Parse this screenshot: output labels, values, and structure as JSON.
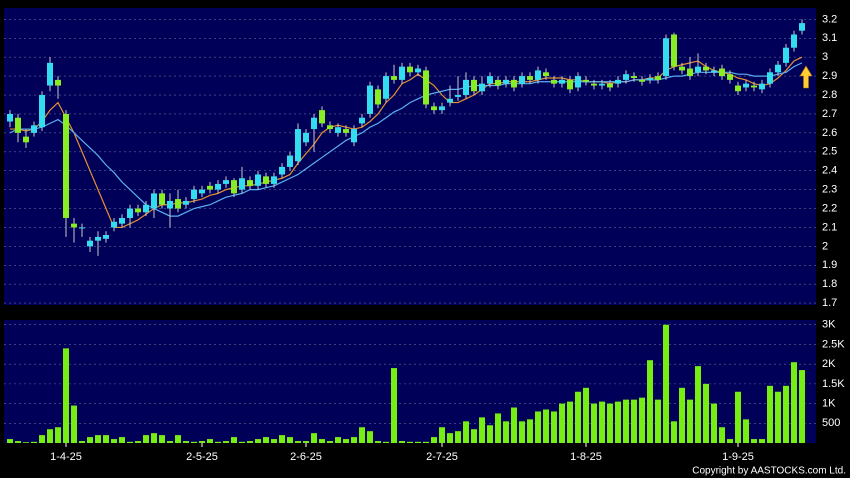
{
  "chart_data": [
    {
      "type": "candlestick",
      "up_color": "#33ddee",
      "down_color": "#88ee22",
      "open": [
        2.66,
        2.68,
        2.58,
        2.6,
        2.63,
        2.85,
        2.88,
        2.7,
        2.12,
        2.1,
        2.0,
        2.03,
        2.04,
        2.1,
        2.12,
        2.15,
        2.2,
        2.18,
        2.2,
        2.28,
        2.2,
        2.25,
        2.22,
        2.25,
        2.28,
        2.32,
        2.3,
        2.33,
        2.35,
        2.3,
        2.35,
        2.32,
        2.37,
        2.33,
        2.38,
        2.42,
        2.45,
        2.55,
        2.62,
        2.72,
        2.64,
        2.6,
        2.62,
        2.55,
        2.65,
        2.7,
        2.83,
        2.78,
        2.9,
        2.88,
        2.95,
        2.92,
        2.93,
        2.74,
        2.72,
        2.76,
        2.79,
        2.8,
        2.88,
        2.82,
        2.86,
        2.88,
        2.86,
        2.88,
        2.86,
        2.9,
        2.88,
        2.92,
        2.88,
        2.86,
        2.88,
        2.84,
        2.88,
        2.86,
        2.85,
        2.86,
        2.86,
        2.88,
        2.9,
        2.88,
        2.88,
        2.9,
        2.9,
        3.12,
        2.95,
        2.94,
        2.92,
        2.95,
        2.92,
        2.94,
        2.91,
        2.85,
        2.84,
        2.85,
        2.83,
        2.86,
        2.92,
        2.97,
        3.05,
        3.14
      ],
      "high": [
        2.72,
        2.7,
        2.62,
        2.66,
        2.82,
        3.0,
        2.9,
        2.72,
        2.15,
        2.12,
        2.05,
        2.08,
        2.08,
        2.15,
        2.17,
        2.22,
        2.22,
        2.24,
        2.3,
        2.3,
        2.28,
        2.3,
        2.26,
        2.32,
        2.32,
        2.34,
        2.35,
        2.37,
        2.36,
        2.42,
        2.37,
        2.4,
        2.39,
        2.39,
        2.44,
        2.5,
        2.65,
        2.62,
        2.7,
        2.74,
        2.66,
        2.65,
        2.64,
        2.64,
        2.7,
        2.87,
        2.85,
        2.92,
        2.96,
        2.97,
        2.97,
        2.96,
        2.95,
        2.76,
        2.76,
        2.85,
        2.9,
        2.92,
        2.9,
        2.9,
        2.92,
        2.9,
        2.9,
        2.9,
        2.92,
        2.92,
        2.95,
        2.94,
        2.9,
        2.9,
        2.9,
        2.92,
        2.9,
        2.88,
        2.88,
        2.88,
        2.9,
        2.93,
        2.92,
        2.9,
        2.91,
        2.92,
        3.12,
        3.13,
        2.97,
        3.0,
        3.02,
        2.97,
        2.95,
        2.96,
        2.93,
        2.87,
        2.88,
        2.87,
        2.88,
        2.94,
        2.98,
        3.07,
        3.14,
        3.2
      ],
      "low": [
        2.63,
        2.55,
        2.52,
        2.58,
        2.61,
        2.82,
        2.78,
        2.05,
        2.02,
        2.05,
        1.97,
        1.95,
        2.02,
        2.08,
        2.1,
        2.1,
        2.16,
        2.16,
        2.15,
        2.2,
        2.1,
        2.18,
        2.2,
        2.23,
        2.26,
        2.28,
        2.28,
        2.31,
        2.26,
        2.28,
        2.3,
        2.3,
        2.31,
        2.31,
        2.36,
        2.4,
        2.43,
        2.53,
        2.5,
        2.63,
        2.6,
        2.58,
        2.58,
        2.53,
        2.63,
        2.68,
        2.73,
        2.76,
        2.86,
        2.86,
        2.9,
        2.9,
        2.73,
        2.7,
        2.7,
        2.74,
        2.77,
        2.78,
        2.8,
        2.8,
        2.84,
        2.83,
        2.84,
        2.82,
        2.84,
        2.86,
        2.86,
        2.88,
        2.84,
        2.84,
        2.81,
        2.82,
        2.85,
        2.83,
        2.83,
        2.82,
        2.84,
        2.86,
        2.87,
        2.85,
        2.86,
        2.86,
        2.88,
        2.93,
        2.91,
        2.88,
        2.9,
        2.91,
        2.9,
        2.88,
        2.86,
        2.8,
        2.82,
        2.82,
        2.81,
        2.84,
        2.9,
        2.95,
        3.03,
        3.12
      ],
      "close": [
        2.7,
        2.6,
        2.55,
        2.64,
        2.8,
        2.97,
        2.85,
        2.15,
        2.1,
        2.1,
        2.03,
        2.05,
        2.06,
        2.13,
        2.15,
        2.2,
        2.18,
        2.22,
        2.28,
        2.22,
        2.24,
        2.2,
        2.24,
        2.3,
        2.3,
        2.3,
        2.33,
        2.35,
        2.28,
        2.36,
        2.32,
        2.38,
        2.33,
        2.37,
        2.42,
        2.48,
        2.62,
        2.6,
        2.68,
        2.65,
        2.62,
        2.63,
        2.6,
        2.62,
        2.68,
        2.85,
        2.75,
        2.9,
        2.88,
        2.95,
        2.92,
        2.94,
        2.75,
        2.72,
        2.74,
        2.78,
        2.8,
        2.88,
        2.82,
        2.86,
        2.9,
        2.85,
        2.88,
        2.84,
        2.9,
        2.88,
        2.93,
        2.9,
        2.86,
        2.88,
        2.83,
        2.9,
        2.87,
        2.85,
        2.86,
        2.84,
        2.88,
        2.91,
        2.89,
        2.87,
        2.89,
        2.88,
        3.1,
        2.95,
        2.93,
        2.9,
        2.95,
        2.93,
        2.93,
        2.9,
        2.88,
        2.82,
        2.86,
        2.84,
        2.86,
        2.92,
        2.96,
        3.05,
        3.12,
        3.18
      ],
      "lines": [
        {
          "color": "#e89030",
          "values": [
            2.62,
            2.62,
            2.61,
            2.62,
            2.66,
            2.72,
            2.76,
            2.68,
            2.6,
            2.5,
            2.4,
            2.3,
            2.2,
            2.1,
            2.1,
            2.12,
            2.14,
            2.17,
            2.2,
            2.22,
            2.22,
            2.23,
            2.23,
            2.24,
            2.25,
            2.27,
            2.28,
            2.3,
            2.31,
            2.32,
            2.32,
            2.33,
            2.34,
            2.35,
            2.36,
            2.38,
            2.44,
            2.49,
            2.54,
            2.6,
            2.63,
            2.64,
            2.63,
            2.62,
            2.63,
            2.66,
            2.7,
            2.76,
            2.8,
            2.86,
            2.88,
            2.91,
            2.88,
            2.85,
            2.8,
            2.76,
            2.76,
            2.78,
            2.8,
            2.83,
            2.86,
            2.86,
            2.87,
            2.87,
            2.87,
            2.87,
            2.88,
            2.89,
            2.89,
            2.89,
            2.88,
            2.88,
            2.87,
            2.87,
            2.87,
            2.86,
            2.87,
            2.87,
            2.88,
            2.88,
            2.89,
            2.89,
            2.93,
            2.95,
            2.96,
            2.97,
            2.98,
            2.95,
            2.93,
            2.92,
            2.91,
            2.89,
            2.88,
            2.86,
            2.85,
            2.86,
            2.89,
            2.93,
            2.98,
            3.0
          ]
        },
        {
          "color": "#5ab0f0",
          "values": [
            2.6,
            2.62,
            2.62,
            2.62,
            2.63,
            2.65,
            2.67,
            2.64,
            2.6,
            2.56,
            2.52,
            2.48,
            2.43,
            2.39,
            2.34,
            2.3,
            2.26,
            2.22,
            2.2,
            2.18,
            2.16,
            2.16,
            2.18,
            2.2,
            2.21,
            2.22,
            2.24,
            2.26,
            2.27,
            2.28,
            2.3,
            2.3,
            2.31,
            2.32,
            2.34,
            2.36,
            2.38,
            2.41,
            2.44,
            2.47,
            2.5,
            2.53,
            2.56,
            2.58,
            2.6,
            2.63,
            2.65,
            2.68,
            2.71,
            2.73,
            2.76,
            2.78,
            2.8,
            2.81,
            2.82,
            2.83,
            2.83,
            2.84,
            2.85,
            2.85,
            2.85,
            2.85,
            2.86,
            2.86,
            2.86,
            2.86,
            2.87,
            2.87,
            2.87,
            2.87,
            2.87,
            2.87,
            2.87,
            2.87,
            2.87,
            2.87,
            2.87,
            2.87,
            2.88,
            2.88,
            2.88,
            2.88,
            2.89,
            2.9,
            2.9,
            2.91,
            2.92,
            2.92,
            2.92,
            2.92,
            2.92,
            2.91,
            2.91,
            2.9,
            2.9,
            2.9,
            2.91,
            2.92,
            2.95,
            2.97
          ]
        }
      ],
      "ylim": [
        1.69,
        3.26
      ],
      "yticks": [
        1.7,
        1.8,
        1.9,
        2,
        2.1,
        2.2,
        2.3,
        2.4,
        2.5,
        2.6,
        2.7,
        2.8,
        2.9,
        3,
        3.1,
        3.2
      ],
      "grid": true
    },
    {
      "type": "bar",
      "color": "#77ee11",
      "categories": [
        null,
        null,
        null,
        null,
        null,
        null,
        null,
        "1-4-25",
        null,
        null,
        null,
        null,
        null,
        null,
        null,
        null,
        null,
        null,
        null,
        null,
        null,
        null,
        null,
        null,
        "2-5-25",
        null,
        null,
        null,
        null,
        null,
        null,
        null,
        null,
        null,
        null,
        null,
        null,
        "2-6-25",
        null,
        null,
        null,
        null,
        null,
        null,
        null,
        null,
        null,
        null,
        null,
        null,
        null,
        null,
        null,
        null,
        "2-7-25",
        null,
        null,
        null,
        null,
        null,
        null,
        null,
        null,
        null,
        null,
        null,
        null,
        null,
        null,
        null,
        null,
        null,
        "1-8-25",
        null,
        null,
        null,
        null,
        null,
        null,
        null,
        null,
        null,
        null,
        null,
        null,
        null,
        null,
        null,
        null,
        null,
        null,
        "1-9-25",
        null,
        null,
        null,
        null,
        null,
        null,
        null,
        null
      ],
      "values": [
        100,
        50,
        20,
        30,
        200,
        350,
        400,
        2400,
        950,
        50,
        150,
        200,
        200,
        100,
        150,
        30,
        50,
        200,
        250,
        200,
        50,
        200,
        50,
        30,
        50,
        100,
        30,
        50,
        150,
        30,
        50,
        100,
        150,
        100,
        200,
        150,
        50,
        50,
        250,
        100,
        50,
        150,
        100,
        150,
        400,
        300,
        50,
        30,
        1900,
        50,
        30,
        30,
        30,
        150,
        400,
        250,
        300,
        550,
        350,
        650,
        450,
        750,
        550,
        900,
        550,
        600,
        800,
        850,
        800,
        1000,
        1050,
        1300,
        1400,
        1000,
        1050,
        1000,
        1050,
        1100,
        1100,
        1150,
        2100,
        1100,
        3000,
        550,
        1400,
        1100,
        1950,
        1500,
        1000,
        400,
        100,
        1300,
        600,
        100,
        100,
        1450,
        1300,
        1450,
        2050,
        1850
      ],
      "ylim": [
        0,
        3120
      ],
      "yticks": [
        {
          "value": 500,
          "label": "500"
        },
        {
          "value": 1000,
          "label": "1K"
        },
        {
          "value": 1500,
          "label": "1.5K"
        },
        {
          "value": 2000,
          "label": "2K"
        },
        {
          "value": 2500,
          "label": "2.5K"
        },
        {
          "value": 3000,
          "label": "3K"
        }
      ],
      "grid": true
    }
  ],
  "footer": "Copyright by AASTOCKS.com Ltd."
}
